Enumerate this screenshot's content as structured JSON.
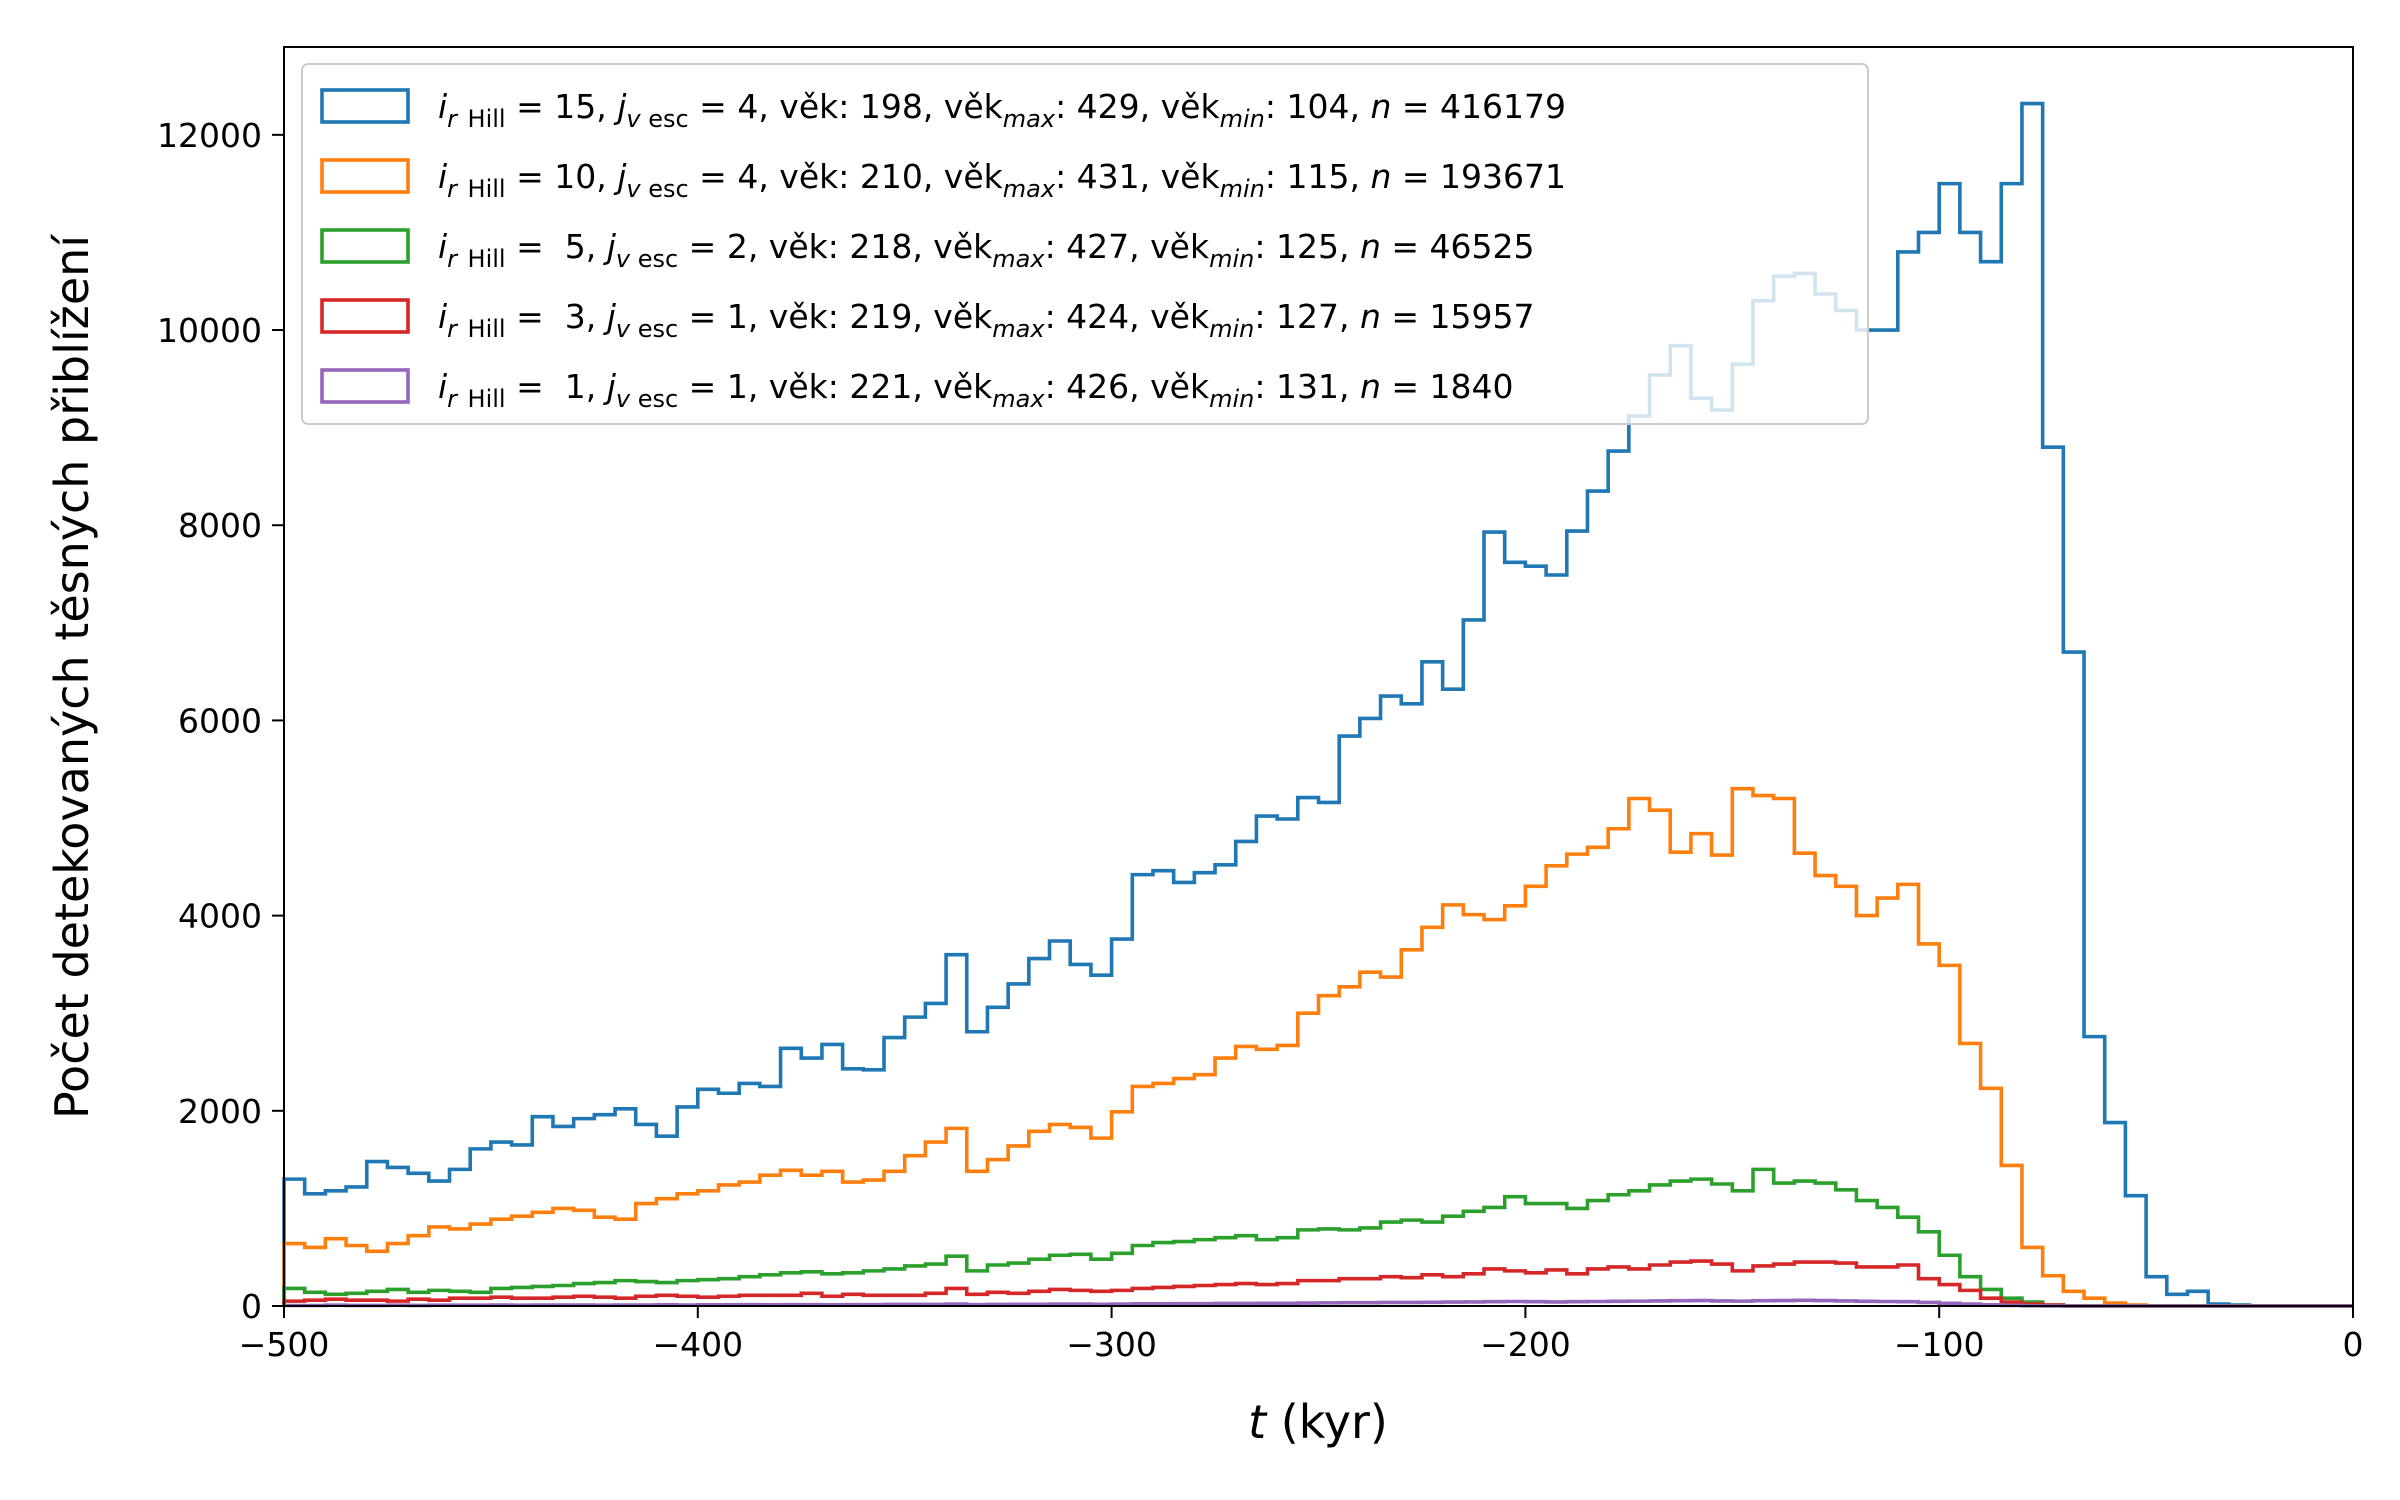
{
  "chart_data": {
    "type": "histogram-step",
    "xlabel": "t (kyr)",
    "ylabel": "Počet detekovaných těsných přiblížení",
    "xlim": [
      -500,
      0
    ],
    "ylim": [
      0,
      12900
    ],
    "xticks": [
      -500,
      -400,
      -300,
      -200,
      -100,
      0
    ],
    "yticks": [
      0,
      2000,
      4000,
      6000,
      8000,
      10000,
      12000
    ],
    "bin_width": 5,
    "bin_start": -500,
    "legend_position": "upper-left",
    "series": [
      {
        "name": "i_rHill = 15, j_vesc = 4, věk: 198, věk_max: 429, věk_min: 104, n = 416179",
        "color": "#1f77b4",
        "legend": {
          "i": "15",
          "j": "4",
          "vek": "198",
          "vekmax": "429",
          "vekmin": "104",
          "n": "416179"
        },
        "values": [
          1300,
          1150,
          1180,
          1220,
          1480,
          1420,
          1360,
          1280,
          1400,
          1610,
          1680,
          1650,
          1940,
          1840,
          1920,
          1960,
          2020,
          1860,
          1740,
          2040,
          2220,
          2180,
          2280,
          2250,
          2640,
          2540,
          2680,
          2430,
          2420,
          2750,
          2960,
          3100,
          3600,
          2810,
          3060,
          3300,
          3560,
          3740,
          3500,
          3390,
          3760,
          4420,
          4460,
          4340,
          4440,
          4520,
          4760,
          5020,
          4990,
          5210,
          5160,
          5840,
          6020,
          6250,
          6170,
          6600,
          6320,
          7030,
          7930,
          7620,
          7580,
          7490,
          7940,
          8350,
          8760,
          9120,
          9540,
          9840,
          9300,
          9180,
          9650,
          10300,
          10550,
          10580,
          10370,
          10200,
          10000,
          10000,
          10800,
          11000,
          11500,
          11000,
          10700,
          11500,
          12320,
          8800,
          6700,
          2760,
          1880,
          1130,
          300,
          120,
          150,
          20,
          10,
          0,
          0,
          0,
          0,
          0
        ]
      },
      {
        "name": "i_rHill = 10, j_vesc = 4, věk: 210, věk_max: 431, věk_min: 115, n = 193671",
        "color": "#ff7f0e",
        "legend": {
          "i": "10",
          "j": "4",
          "vek": "210",
          "vekmax": "431",
          "vekmin": "115",
          "n": "193671"
        },
        "values": [
          640,
          600,
          690,
          620,
          560,
          640,
          720,
          810,
          790,
          840,
          890,
          920,
          960,
          1000,
          980,
          910,
          890,
          1050,
          1100,
          1150,
          1180,
          1240,
          1270,
          1340,
          1390,
          1340,
          1380,
          1270,
          1290,
          1380,
          1540,
          1680,
          1820,
          1380,
          1500,
          1640,
          1790,
          1860,
          1830,
          1720,
          1990,
          2250,
          2280,
          2330,
          2370,
          2540,
          2660,
          2630,
          2670,
          3000,
          3180,
          3270,
          3420,
          3370,
          3650,
          3880,
          4110,
          4010,
          3960,
          4100,
          4300,
          4510,
          4630,
          4700,
          4890,
          5200,
          5080,
          4650,
          4840,
          4620,
          5300,
          5230,
          5200,
          4640,
          4410,
          4300,
          4000,
          4180,
          4320,
          3710,
          3490,
          2690,
          2230,
          1440,
          600,
          310,
          150,
          80,
          30,
          10,
          0,
          0,
          0,
          0,
          0,
          0,
          0,
          0,
          0,
          0
        ]
      },
      {
        "name": "i_rHill = 5, j_vesc = 2, věk: 218, věk_max: 427, věk_min: 125, n = 46525",
        "color": "#2ca02c",
        "legend": {
          "i": "5",
          "j": "2",
          "vek": "218",
          "vekmax": "427",
          "vekmin": "125",
          "n": "46525"
        },
        "values": [
          180,
          140,
          120,
          130,
          150,
          170,
          140,
          160,
          150,
          140,
          180,
          190,
          200,
          210,
          230,
          240,
          260,
          250,
          240,
          260,
          270,
          280,
          300,
          320,
          340,
          350,
          330,
          340,
          360,
          380,
          410,
          430,
          510,
          360,
          420,
          440,
          480,
          520,
          530,
          480,
          540,
          620,
          650,
          660,
          680,
          700,
          720,
          680,
          700,
          780,
          790,
          780,
          800,
          860,
          880,
          860,
          920,
          970,
          1010,
          1120,
          1050,
          1050,
          1000,
          1080,
          1140,
          1180,
          1240,
          1280,
          1300,
          1250,
          1180,
          1400,
          1260,
          1280,
          1260,
          1190,
          1080,
          1010,
          910,
          760,
          520,
          300,
          170,
          80,
          40,
          10,
          0,
          0,
          0,
          0,
          0,
          0,
          0,
          0,
          0,
          0,
          0,
          0,
          0,
          0
        ]
      },
      {
        "name": "i_rHill = 3, j_vesc = 1, věk: 219, věk_max: 424, věk_min: 127, n = 15957",
        "color": "#d62728",
        "legend": {
          "i": "3",
          "j": "1",
          "vek": "219",
          "vekmax": "424",
          "vekmin": "127",
          "n": "15957"
        },
        "values": [
          50,
          60,
          70,
          60,
          60,
          50,
          70,
          60,
          80,
          80,
          90,
          80,
          80,
          90,
          100,
          90,
          80,
          100,
          110,
          100,
          90,
          100,
          110,
          110,
          110,
          130,
          100,
          120,
          110,
          110,
          110,
          130,
          180,
          120,
          140,
          130,
          150,
          170,
          160,
          150,
          160,
          180,
          190,
          200,
          210,
          220,
          230,
          220,
          230,
          260,
          260,
          280,
          280,
          300,
          290,
          320,
          300,
          330,
          380,
          360,
          340,
          370,
          330,
          380,
          400,
          380,
          420,
          450,
          460,
          430,
          360,
          410,
          430,
          450,
          450,
          440,
          400,
          400,
          420,
          280,
          220,
          160,
          80,
          40,
          20,
          10,
          0,
          0,
          0,
          0,
          0,
          0,
          0,
          0,
          0,
          0,
          0,
          0,
          0,
          0
        ]
      },
      {
        "name": "i_rHill = 1, j_vesc = 1, věk: 221, věk_max: 426, věk_min: 131, n = 1840",
        "color": "#9467bd",
        "legend": {
          "i": "1",
          "j": "1",
          "vek": "221",
          "vekmax": "426",
          "vekmin": "131",
          "n": "1840"
        },
        "values": [
          5,
          5,
          8,
          6,
          6,
          8,
          6,
          8,
          8,
          8,
          10,
          8,
          10,
          10,
          10,
          8,
          10,
          10,
          12,
          10,
          12,
          12,
          14,
          12,
          14,
          14,
          12,
          14,
          14,
          16,
          16,
          16,
          20,
          14,
          16,
          18,
          18,
          20,
          20,
          18,
          20,
          22,
          22,
          24,
          24,
          26,
          26,
          28,
          28,
          30,
          32,
          34,
          34,
          36,
          36,
          38,
          40,
          42,
          44,
          46,
          44,
          42,
          44,
          46,
          48,
          50,
          52,
          54,
          56,
          52,
          50,
          54,
          56,
          58,
          56,
          52,
          48,
          46,
          44,
          36,
          28,
          20,
          12,
          6,
          2,
          0,
          0,
          0,
          0,
          0,
          0,
          0,
          0,
          0,
          0,
          0,
          0,
          0,
          0,
          0
        ]
      }
    ]
  }
}
